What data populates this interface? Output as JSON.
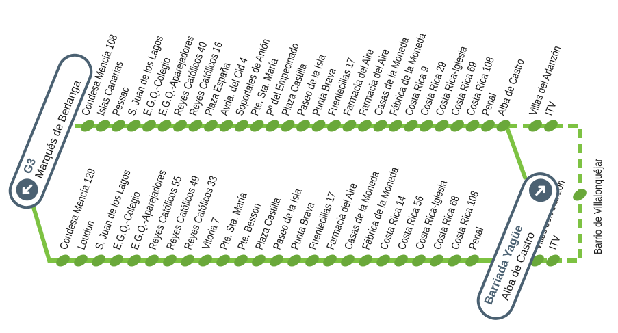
{
  "colors": {
    "line": "#7dc242",
    "stop": "#6aa83a",
    "terminal": "#4b6172"
  },
  "route": {
    "code": "G3"
  },
  "terminal_start": {
    "name": "Marqués de Berlanga",
    "icon": "arrow-down-left-icon"
  },
  "terminal_end": {
    "title": "Barriada Yagüe",
    "name": "Alba de Castro",
    "icon": "arrow-up-right-icon"
  },
  "branch": {
    "name": "Barrio de Villalonquéjar"
  },
  "outbound_stops": [
    "Condesa Mencía 108",
    "Islas Canarias",
    "Pessac",
    "S. Juan de los Lagos",
    "E.G.Q.-Colegio",
    "E.G.Q.-Aparejadores",
    "Reyes Católicos 40",
    "Reyes Católicos 16",
    "Plaza España",
    "Avda. del Cid 4",
    "Soportales de Antón",
    "Pte. Sta. María",
    "Pº del Empecinado",
    "Plaza Castilla",
    "Paseo de la Isla",
    "Punta Brava",
    "Fuentecillas 17",
    "Farmacia del Aire",
    "Farmacia del Aire",
    "Casas de la Moneda",
    "Fábrica de la Moneda",
    "Costa Rica 9",
    "Costa Rica 29",
    "Costa Rica-Iglesia",
    "Costa Rica 69",
    "Costa Rica 108",
    "Penal",
    "Alba de Castro"
  ],
  "outbound_branch_stops": [
    "Villas del Arlanzón",
    "ITV"
  ],
  "return_stops": [
    "Condesa Mencía 129",
    "Loudun",
    "S. Juan de los Lagos",
    "E.G.Q.-Colegio",
    "E.G.Q.-Aparejadores",
    "Reyes Católicos 55",
    "Reyes Católicos 49",
    "Reyes Católicos 33",
    "Vitoria 7",
    "Pte. Sta. María",
    "Pte. Besson",
    "Plaza Castilla",
    "Paseo de la Isla",
    "Punta Brava",
    "Fuentecillas 17",
    "Farmacia del Aire",
    "Casas de la Moneda",
    "Fábrica de la Moneda",
    "Costa Rica 14",
    "Costa Rica 56",
    "Costa Rica-Iglesia",
    "Costa Rica 68",
    "Costa Rica 108",
    "Penal"
  ],
  "return_branch_stops": [
    "Villas del Arlanzón",
    "ITV"
  ]
}
